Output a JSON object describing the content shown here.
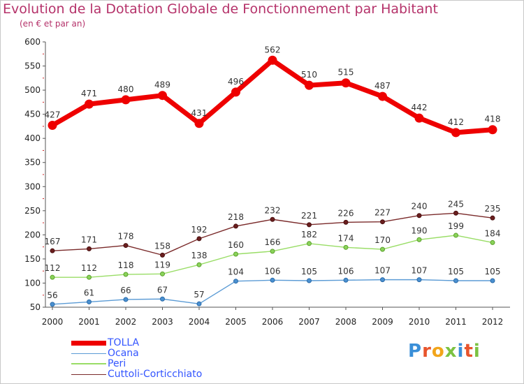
{
  "title": "Evolution de la Dotation Globale de Fonctionnement par Habitant",
  "subtitle": "(en € et par an)",
  "logo": {
    "text": "Proxiti",
    "colors": [
      "#3a8fd8",
      "#e8542c",
      "#f2a51a",
      "#7cc242",
      "#3a8fd8",
      "#e8542c",
      "#7cc242"
    ]
  },
  "chart_data": {
    "type": "line",
    "title": "Evolution de la Dotation Globale de Fonctionnement par Habitant",
    "subtitle": "(en € et par an)",
    "x": [
      "2000",
      "2001",
      "2002",
      "2003",
      "2004",
      "2005",
      "2006",
      "2007",
      "2008",
      "2009",
      "2010",
      "2011",
      "2012"
    ],
    "ylim": [
      50,
      600
    ],
    "yticks": [
      50,
      100,
      150,
      200,
      250,
      300,
      350,
      400,
      450,
      500,
      550,
      600
    ],
    "grid": false,
    "legend_position": "bottom-left",
    "series": [
      {
        "name": "TOLLA",
        "color": "#ee0000",
        "values": [
          427,
          471,
          480,
          489,
          431,
          496,
          562,
          510,
          515,
          487,
          442,
          412,
          418
        ]
      },
      {
        "name": "Ocana",
        "color": "#5b9bd5",
        "values": [
          56,
          61,
          66,
          67,
          57,
          104,
          106,
          105,
          106,
          107,
          107,
          105,
          105
        ]
      },
      {
        "name": "Peri",
        "color": "#99dd66",
        "values": [
          112,
          112,
          118,
          119,
          138,
          160,
          166,
          182,
          174,
          170,
          190,
          199,
          184
        ]
      },
      {
        "name": "Cuttoli-Corticchiato",
        "color": "#7a2a2a",
        "values": [
          167,
          171,
          178,
          158,
          192,
          218,
          232,
          221,
          226,
          227,
          240,
          245,
          235
        ]
      }
    ]
  }
}
